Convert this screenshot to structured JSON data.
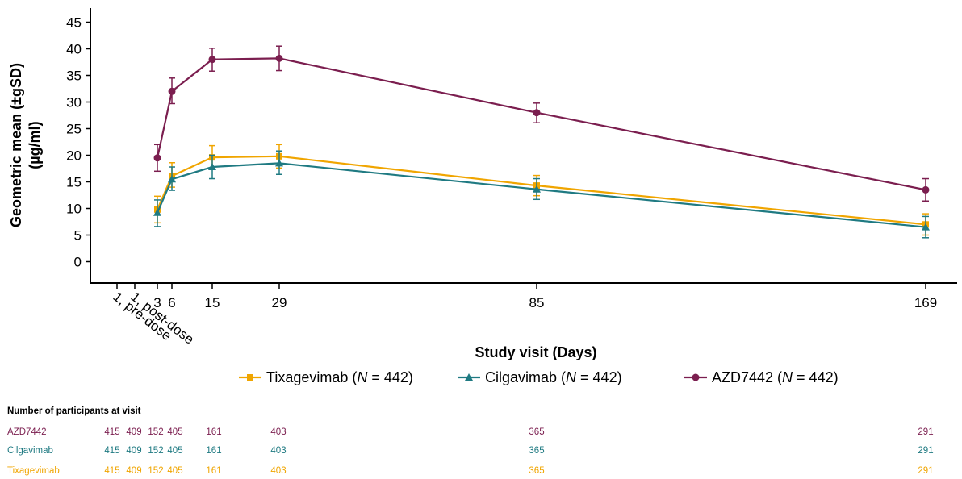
{
  "chart_data": {
    "type": "line",
    "title": "",
    "xlabel": "Study visit (Days)",
    "ylabel": "Geometric mean (±gSD) (µg/ml)",
    "ylabel_lines": [
      "Geometric mean (±gSD)",
      "(µg/ml)"
    ],
    "ylim": [
      0,
      45
    ],
    "yticks": [
      0,
      5,
      10,
      15,
      20,
      25,
      30,
      35,
      40,
      45
    ],
    "x_ticks": [
      {
        "label": "1, pre-dose",
        "rotated": true
      },
      {
        "label": "1, post-dose",
        "rotated": true
      },
      {
        "label": "3",
        "rotated": false
      },
      {
        "label": "6",
        "rotated": false
      },
      {
        "label": "15",
        "rotated": false
      },
      {
        "label": "29",
        "rotated": false
      },
      {
        "label": "85",
        "rotated": false
      },
      {
        "label": "169",
        "rotated": false
      }
    ],
    "grid": false,
    "legend_placement": "bottom",
    "series": [
      {
        "name": "AZD7442",
        "legend_prefix": "AZD7442 (",
        "legend_n": "N",
        "legend_suffix": " = 442)",
        "color": "#7b1e4f",
        "marker": "circle",
        "points": [
          {
            "day": 3,
            "y": 19.5,
            "lo": 17.0,
            "hi": 22.0
          },
          {
            "day": 6,
            "y": 32.0,
            "lo": 29.7,
            "hi": 34.5
          },
          {
            "day": 15,
            "y": 38.0,
            "lo": 35.8,
            "hi": 40.1
          },
          {
            "day": 29,
            "y": 38.2,
            "lo": 35.9,
            "hi": 40.5
          },
          {
            "day": 85,
            "y": 28.0,
            "lo": 26.1,
            "hi": 29.8
          },
          {
            "day": 169,
            "y": 13.5,
            "lo": 11.4,
            "hi": 15.6
          }
        ]
      },
      {
        "name": "Cilgavimab",
        "legend_prefix": "Cilgavimab (",
        "legend_n": "N",
        "legend_suffix": " = 442)",
        "color": "#1f7a82",
        "marker": "triangle",
        "points": [
          {
            "day": 3,
            "y": 9.2,
            "lo": 6.6,
            "hi": 11.6
          },
          {
            "day": 6,
            "y": 15.5,
            "lo": 13.4,
            "hi": 17.8
          },
          {
            "day": 15,
            "y": 17.8,
            "lo": 15.6,
            "hi": 20.0
          },
          {
            "day": 29,
            "y": 18.5,
            "lo": 16.4,
            "hi": 20.8
          },
          {
            "day": 85,
            "y": 13.6,
            "lo": 11.7,
            "hi": 15.6
          },
          {
            "day": 169,
            "y": 6.5,
            "lo": 4.5,
            "hi": 8.5
          }
        ]
      },
      {
        "name": "Tixagevimab",
        "legend_prefix": "Tixagevimab (",
        "legend_n": "N",
        "legend_suffix": " = 442)",
        "color": "#f0a500",
        "marker": "square",
        "points": [
          {
            "day": 3,
            "y": 9.8,
            "lo": 7.3,
            "hi": 12.3
          },
          {
            "day": 6,
            "y": 16.1,
            "lo": 14.0,
            "hi": 18.6
          },
          {
            "day": 15,
            "y": 19.6,
            "lo": 17.4,
            "hi": 21.8
          },
          {
            "day": 29,
            "y": 19.8,
            "lo": 17.6,
            "hi": 22.0
          },
          {
            "day": 85,
            "y": 14.3,
            "lo": 12.4,
            "hi": 16.2
          },
          {
            "day": 169,
            "y": 7.0,
            "lo": 5.0,
            "hi": 9.0
          }
        ]
      }
    ],
    "legend_order": [
      "Tixagevimab",
      "Cilgavimab",
      "AZD7442"
    ]
  },
  "participants_table": {
    "title": "Number of participants at visit",
    "rows": [
      {
        "label": "AZD7442",
        "color": "#7b1e4f",
        "values": [
          "415",
          "409",
          "152",
          "405",
          "161",
          "403",
          "365",
          "291"
        ]
      },
      {
        "label": "Cilgavimab",
        "color": "#1f7a82",
        "values": [
          "415",
          "409",
          "152",
          "405",
          "161",
          "403",
          "365",
          "291"
        ]
      },
      {
        "label": "Tixagevimab",
        "color": "#f0a500",
        "values": [
          "415",
          "409",
          "152",
          "405",
          "161",
          "403",
          "365",
          "291"
        ]
      }
    ]
  }
}
